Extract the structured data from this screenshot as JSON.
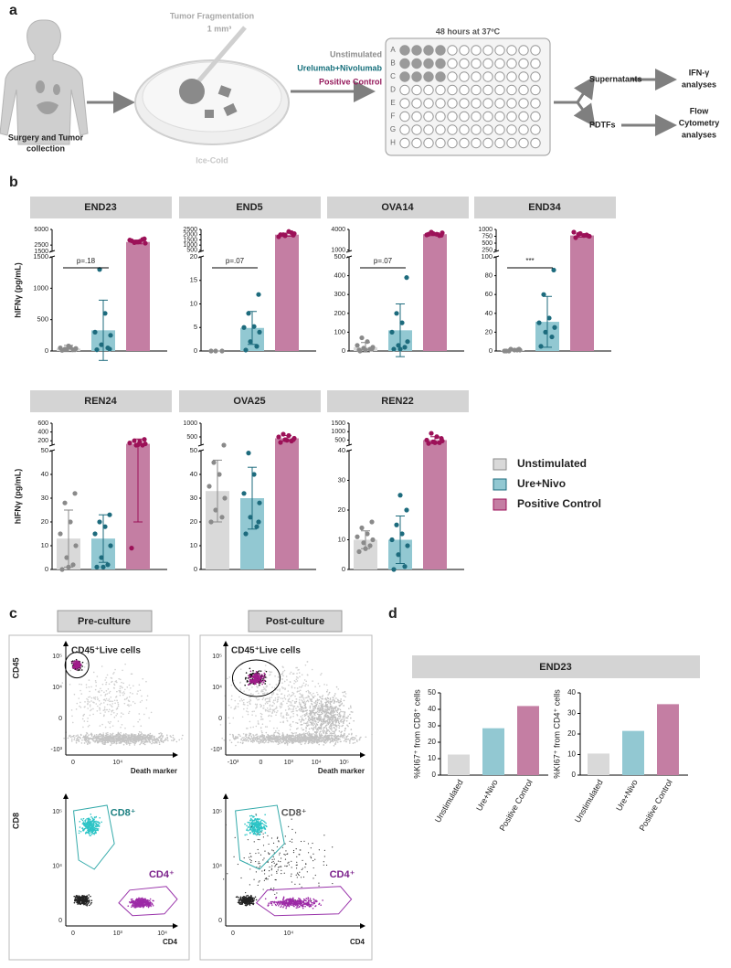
{
  "panel_labels": [
    "a",
    "b",
    "c",
    "d"
  ],
  "workflow": {
    "surgery_lines": [
      "Surgery and Tumor",
      "collection"
    ],
    "fragmentation": "Tumor Fragmentation",
    "fragment_size": "1 mm³",
    "ice": "Ice-Cold",
    "conditions": [
      {
        "name": "Unstimulated",
        "color": "#8c8c8c"
      },
      {
        "name": "Urelumab+Nivolumab",
        "color": "#17707c"
      },
      {
        "name": "Positive Control",
        "color": "#951a5c"
      }
    ],
    "incubation": "48 hours at 37ºC",
    "plate_rows": [
      "A",
      "B",
      "C",
      "D",
      "E",
      "F",
      "G",
      "H"
    ],
    "supernatants": "Supernatants",
    "ifn_lines": [
      "IFN-γ",
      "analyses"
    ],
    "pdtfs": "PDTFs",
    "flow_lines": [
      "Flow",
      "Cytometry",
      "analyses"
    ]
  },
  "legend_b": [
    {
      "name": "Unstimulated",
      "color": "#d9d9d9",
      "point_color": "#8a8a8a"
    },
    {
      "name": "Ure+Nivo",
      "color": "#92c8d2",
      "point_color": "#1d6b7d"
    },
    {
      "name": "Positive Control",
      "color": "#c47ea3",
      "point_color": "#9c1158"
    }
  ],
  "chart_data": [
    {
      "type": "bar_dot",
      "title": "END23",
      "ylabel": "hIFNγ (pg/mL)",
      "ylim": [
        0,
        1500
      ],
      "yticks": [
        0,
        500,
        1000,
        1500
      ],
      "ylim_top": [
        1500,
        5000
      ],
      "yticks_top": [
        1500,
        2500,
        5000
      ],
      "annotation": "p=.18",
      "groups": [
        {
          "mean": 40,
          "sd": 50,
          "points": [
            10,
            20,
            30,
            40,
            50,
            60,
            30,
            20,
            80
          ]
        },
        {
          "mean": 330,
          "sd": 480,
          "points": [
            20,
            50,
            100,
            250,
            300,
            600,
            1300,
            30
          ]
        },
        {
          "mean": 3000,
          "sd": 300,
          "points": [
            3200,
            3400,
            3000,
            2800,
            3300,
            3100,
            2900,
            3500,
            3000
          ]
        }
      ]
    },
    {
      "type": "bar_dot",
      "title": "END5",
      "ylim": [
        0,
        20
      ],
      "yticks": [
        0,
        5,
        10,
        15,
        20
      ],
      "ylim_top": [
        400,
        2500
      ],
      "yticks_top": [
        500,
        1000,
        1500,
        2000,
        2500
      ],
      "annotation": "p=.07",
      "groups": [
        {
          "mean": 0,
          "sd": 0,
          "points": [
            0,
            0,
            0
          ]
        },
        {
          "mean": 4.9,
          "sd": 3.5,
          "points": [
            0.2,
            1,
            2,
            4,
            5,
            5.2,
            8,
            12
          ]
        },
        {
          "mean": 2000,
          "sd": 150,
          "points": [
            2000,
            2200,
            1900,
            2100,
            1800,
            2300,
            2000,
            1950
          ]
        }
      ]
    },
    {
      "type": "bar_dot",
      "title": "OVA14",
      "ylim": [
        0,
        500
      ],
      "yticks": [
        0,
        100,
        200,
        300,
        400,
        500
      ],
      "ylim_top": [
        800,
        4000
      ],
      "yticks_top": [
        1000,
        4000
      ],
      "annotation": "p=.07",
      "groups": [
        {
          "mean": 20,
          "sd": 25,
          "points": [
            5,
            10,
            15,
            20,
            30,
            50,
            70,
            10,
            5,
            0
          ]
        },
        {
          "mean": 110,
          "sd": 140,
          "points": [
            10,
            20,
            30,
            50,
            100,
            150,
            200,
            390,
            10
          ]
        },
        {
          "mean": 3300,
          "sd": 200,
          "points": [
            3300,
            3100,
            3400,
            3500,
            3200,
            3300,
            3600,
            3150
          ]
        }
      ]
    },
    {
      "type": "bar_dot",
      "title": "END34",
      "ylim": [
        0,
        100
      ],
      "yticks": [
        0,
        20,
        40,
        60,
        80,
        100
      ],
      "ylim_top": [
        200,
        1000
      ],
      "yticks_top": [
        250,
        500,
        750,
        1000
      ],
      "annotation": "***",
      "groups": [
        {
          "mean": 1,
          "sd": 1,
          "points": [
            0,
            1,
            2,
            1,
            0,
            1,
            0,
            2
          ]
        },
        {
          "mean": 31,
          "sd": 27,
          "points": [
            5,
            15,
            20,
            25,
            30,
            35,
            60,
            86
          ]
        },
        {
          "mean": 780,
          "sd": 60,
          "points": [
            700,
            800,
            850,
            750,
            900,
            780,
            820,
            760
          ]
        }
      ]
    },
    {
      "type": "bar_dot",
      "title": "REN24",
      "ylabel": "hIFNγ (pg/mL)",
      "ylim": [
        0,
        50
      ],
      "yticks": [
        0,
        10,
        20,
        30,
        40,
        50
      ],
      "ylim_top": [
        100,
        600
      ],
      "yticks_top": [
        200,
        400,
        600
      ],
      "groups": [
        {
          "mean": 13,
          "sd": 12,
          "points": [
            0,
            2,
            5,
            10,
            15,
            20,
            28,
            32,
            1
          ]
        },
        {
          "mean": 13,
          "sd": 10,
          "points": [
            1,
            2,
            5,
            10,
            15,
            18,
            20,
            23,
            1
          ]
        },
        {
          "mean": 130,
          "sd": 110,
          "points": [
            9,
            60,
            100,
            130,
            150,
            180,
            200,
            230,
            110
          ]
        }
      ]
    },
    {
      "type": "bar_dot",
      "title": "OVA25",
      "ylim": [
        0,
        50
      ],
      "yticks": [
        0,
        10,
        20,
        30,
        40,
        50
      ],
      "ylim_top": [
        200,
        1000
      ],
      "yticks_top": [
        500,
        1000
      ],
      "groups": [
        {
          "mean": 33,
          "sd": 13,
          "points": [
            20,
            22,
            25,
            30,
            35,
            40,
            45,
            53
          ]
        },
        {
          "mean": 30,
          "sd": 13,
          "points": [
            15,
            18,
            22,
            28,
            32,
            40,
            49,
            20
          ]
        },
        {
          "mean": 450,
          "sd": 100,
          "points": [
            300,
            350,
            400,
            450,
            500,
            550,
            600,
            400,
            380
          ]
        }
      ]
    },
    {
      "type": "bar_dot",
      "title": "REN22",
      "ylim": [
        0,
        40
      ],
      "yticks": [
        0,
        10,
        20,
        30,
        40
      ],
      "ylim_top": [
        200,
        1500
      ],
      "yticks_top": [
        500,
        1000,
        1500
      ],
      "groups": [
        {
          "mean": 10,
          "sd": 3,
          "points": [
            6,
            8,
            9,
            10,
            11,
            12,
            14,
            16,
            7
          ]
        },
        {
          "mean": 10,
          "sd": 8,
          "points": [
            0,
            1,
            5,
            8,
            10,
            12,
            15,
            20,
            25
          ]
        },
        {
          "mean": 500,
          "sd": 200,
          "points": [
            300,
            350,
            400,
            450,
            500,
            700,
            900,
            600,
            350
          ]
        }
      ]
    },
    {
      "type": "bar",
      "title": "END23",
      "ylabel": "%KI67⁺ from CD8⁺ cells",
      "categories": [
        "Unstimulated",
        "Ure+Nivo",
        "Positive Control"
      ],
      "values": [
        12.5,
        28.5,
        42
      ],
      "colors": [
        "#d9d9d9",
        "#92c8d2",
        "#c47ea3"
      ],
      "ylim": [
        0,
        50
      ],
      "yticks": [
        0,
        10,
        20,
        30,
        40,
        50
      ]
    },
    {
      "type": "bar",
      "ylabel": "%KI67⁺ from CD4⁺ cells",
      "categories": [
        "Unstimulated",
        "Ure+Nivo",
        "Positive Control"
      ],
      "values": [
        10.5,
        21.5,
        34.5
      ],
      "colors": [
        "#d9d9d9",
        "#92c8d2",
        "#c47ea3"
      ],
      "ylim": [
        0,
        40
      ],
      "yticks": [
        0,
        10,
        20,
        30,
        40
      ]
    }
  ],
  "flow": {
    "pre": {
      "title": "Pre-culture",
      "top": {
        "gate": "CD45⁺Live cells",
        "ylabel": "CD45",
        "xlabel": "Death marker",
        "xticks": [
          "0",
          "10⁴"
        ],
        "yticks": [
          "-10³",
          "0",
          "10⁴",
          "10⁵"
        ]
      },
      "bottom": {
        "gates": [
          "CD8⁺",
          "CD4⁺"
        ],
        "ylabel": "CD8",
        "xlabel": "CD4",
        "xticks": [
          "0",
          "10³",
          "10⁴"
        ],
        "yticks": [
          "0",
          "10⁴",
          "10⁵"
        ]
      }
    },
    "post": {
      "title": "Post-culture",
      "top": {
        "gate": "CD45⁺Live cells",
        "xlabel": "Death marker",
        "xticks": [
          "-10³",
          "0",
          "10³",
          "10⁴",
          "10⁵"
        ],
        "yticks": [
          "-10³",
          "0",
          "10⁴",
          "10⁵"
        ]
      },
      "bottom": {
        "gates": [
          "CD8⁺",
          "CD4⁺"
        ],
        "xlabel": "CD4",
        "xticks": [
          "0",
          "10⁴"
        ],
        "yticks": [
          "0",
          "10⁴",
          "10⁵"
        ]
      }
    }
  }
}
